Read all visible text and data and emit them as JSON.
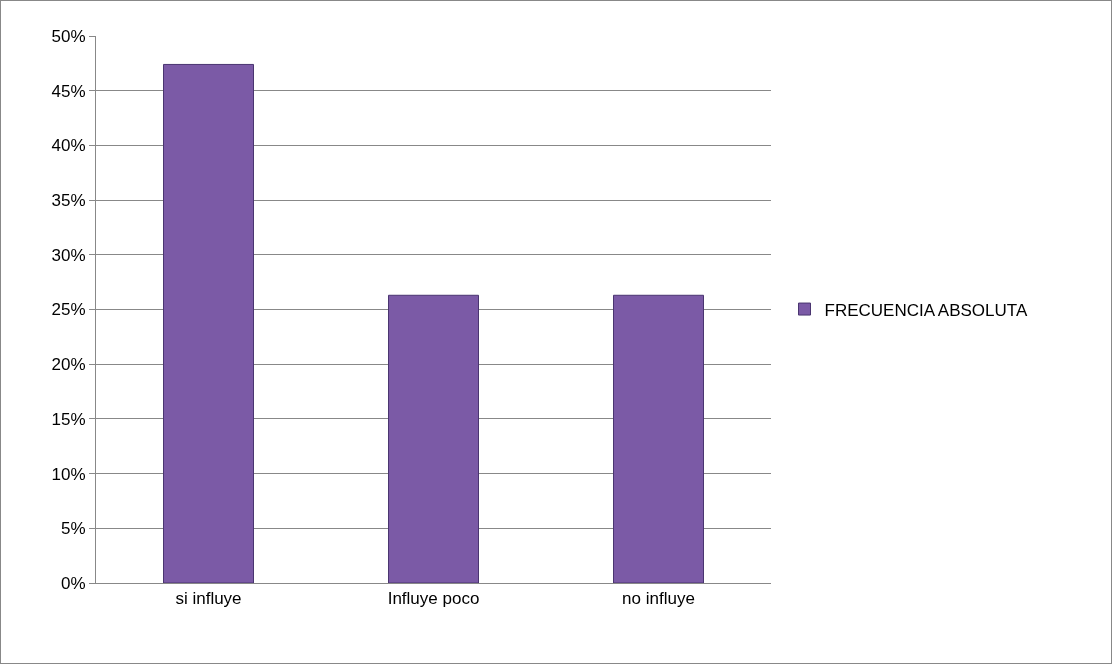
{
  "chart_data": {
    "type": "bar",
    "categories": [
      "si influye",
      "Influye poco",
      "no influye"
    ],
    "series": [
      {
        "name": "FRECUENCIA ABSOLUTA",
        "color": "#7b5aa6",
        "values": [
          47.4,
          26.3,
          26.3
        ]
      }
    ],
    "ylim": [
      0,
      50
    ],
    "yticks": [
      {
        "value": 0,
        "label": "0%"
      },
      {
        "value": 5,
        "label": "5%"
      },
      {
        "value": 10,
        "label": "10%"
      },
      {
        "value": 15,
        "label": "15%"
      },
      {
        "value": 20,
        "label": "20%"
      },
      {
        "value": 25,
        "label": "25%"
      },
      {
        "value": 30,
        "label": "30%"
      },
      {
        "value": 35,
        "label": "35%"
      },
      {
        "value": 40,
        "label": "40%"
      },
      {
        "value": 45,
        "label": "45%"
      },
      {
        "value": 50,
        "label": "50%"
      }
    ],
    "grid": "y",
    "legend": "right"
  }
}
